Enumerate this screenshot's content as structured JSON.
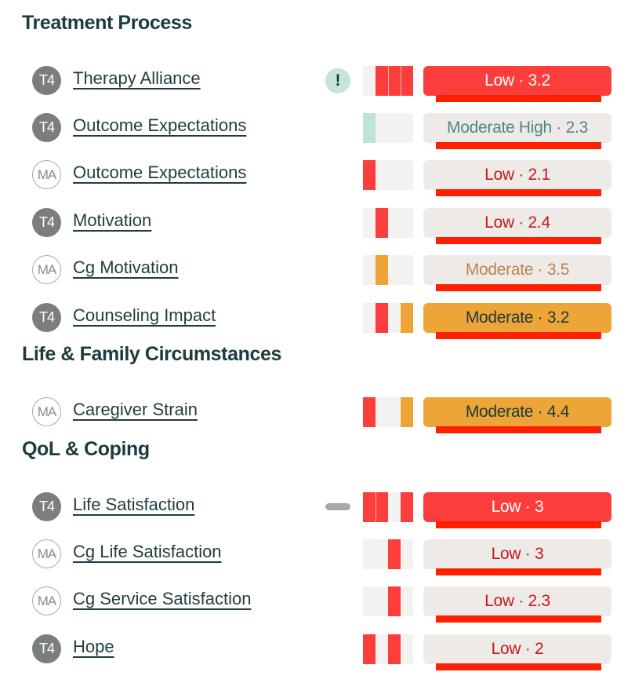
{
  "sections": [
    {
      "title": "Treatment Process",
      "rows": [
        {
          "badge": "T4",
          "label": "Therapy Alliance",
          "indicator": "alert",
          "indicator_glyph": "!",
          "spark": [
            "empty",
            "red",
            "red",
            "red"
          ],
          "pill_style": "low-solid",
          "pill_text": "Low · 3.2",
          "level": "Low",
          "score": "3.2"
        },
        {
          "badge": "T4",
          "label": "Outcome Expectations",
          "indicator": "",
          "spark": [
            "teal",
            "empty",
            "empty",
            "empty"
          ],
          "pill_style": "modhigh-light",
          "pill_text": "Moderate High · 2.3",
          "level": "Moderate High",
          "score": "2.3"
        },
        {
          "badge": "MA",
          "label": "Outcome Expectations",
          "indicator": "",
          "spark": [
            "red",
            "empty",
            "empty",
            "empty"
          ],
          "pill_style": "low-light",
          "pill_text": "Low · 2.1",
          "level": "Low",
          "score": "2.1"
        },
        {
          "badge": "T4",
          "label": "Motivation",
          "indicator": "",
          "spark": [
            "empty",
            "red",
            "empty",
            "empty"
          ],
          "pill_style": "low-light",
          "pill_text": "Low · 2.4",
          "level": "Low",
          "score": "2.4"
        },
        {
          "badge": "MA",
          "label": "Cg Motivation",
          "indicator": "",
          "spark": [
            "empty",
            "orange",
            "empty",
            "empty"
          ],
          "pill_style": "mod-light",
          "pill_text": "Moderate · 3.5",
          "level": "Moderate",
          "score": "3.5"
        },
        {
          "badge": "T4",
          "label": "Counseling Impact",
          "indicator": "",
          "spark": [
            "empty",
            "red",
            "empty",
            "orange"
          ],
          "pill_style": "mod-solid",
          "pill_text": "Moderate · 3.2",
          "level": "Moderate",
          "score": "3.2"
        }
      ]
    },
    {
      "title": "Life & Family Circumstances",
      "rows": [
        {
          "badge": "MA",
          "label": "Caregiver Strain",
          "indicator": "",
          "spark": [
            "red",
            "empty",
            "empty",
            "orange"
          ],
          "pill_style": "mod-solid",
          "pill_text": "Moderate · 4.4",
          "level": "Moderate",
          "score": "4.4"
        }
      ]
    },
    {
      "title": "QoL & Coping",
      "rows": [
        {
          "badge": "T4",
          "label": "Life Satisfaction",
          "indicator": "dash",
          "spark": [
            "red",
            "red",
            "empty",
            "red"
          ],
          "pill_style": "low-solid",
          "pill_text": "Low · 3",
          "level": "Low",
          "score": "3"
        },
        {
          "badge": "MA",
          "label": "Cg Life Satisfaction",
          "indicator": "",
          "spark": [
            "empty",
            "empty",
            "red",
            "empty"
          ],
          "pill_style": "low-light",
          "pill_text": "Low · 3",
          "level": "Low",
          "score": "3"
        },
        {
          "badge": "MA",
          "label": "Cg Service Satisfaction",
          "indicator": "",
          "spark": [
            "empty",
            "empty",
            "red",
            "empty"
          ],
          "pill_style": "low-light",
          "pill_text": "Low · 2.3",
          "level": "Low",
          "score": "2.3"
        },
        {
          "badge": "T4",
          "label": "Hope",
          "indicator": "",
          "spark": [
            "red",
            "empty",
            "red",
            "empty"
          ],
          "pill_style": "low-light",
          "pill_text": "Low · 2",
          "level": "Low",
          "score": "2"
        }
      ]
    }
  ],
  "colors": {
    "low_red": "#fb3e3b",
    "moderate_orange": "#eda437",
    "moderate_high_teal": "#bfe2da",
    "underline_red": "#ff2000",
    "heading": "#1c3b3e"
  }
}
